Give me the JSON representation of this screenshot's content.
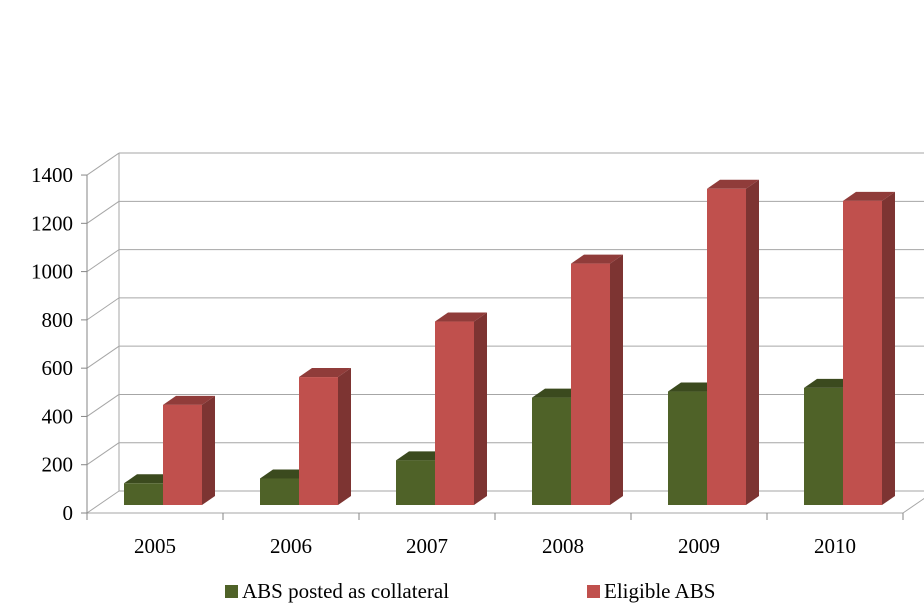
{
  "chart_data": {
    "type": "bar",
    "title": "",
    "xlabel": "",
    "ylabel": "",
    "categories": [
      "2005",
      "2006",
      "2007",
      "2008",
      "2009",
      "2010"
    ],
    "series": [
      {
        "name": "ABS posted as collateral",
        "values": [
          90,
          110,
          185,
          445,
          470,
          485
        ],
        "color": "#4F6228"
      },
      {
        "name": "Eligible ABS",
        "values": [
          415,
          530,
          760,
          1000,
          1310,
          1260
        ],
        "color": "#C0504D"
      }
    ],
    "ylim": [
      0,
      1400
    ],
    "yticks": [
      "0",
      "200",
      "400",
      "600",
      "800",
      "1000",
      "1200",
      "1400"
    ],
    "grid": true,
    "three_d": true,
    "legend_position": "bottom"
  }
}
